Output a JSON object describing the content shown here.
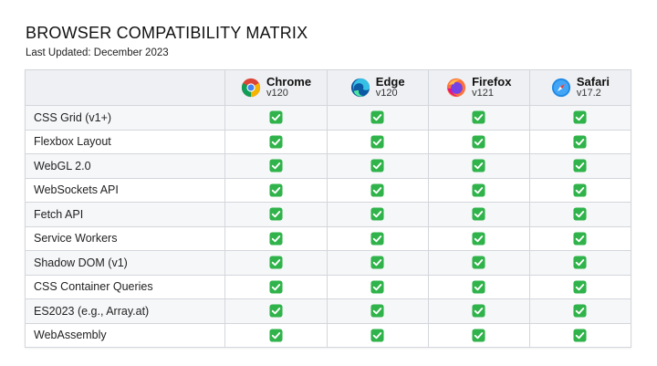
{
  "header": {
    "title": "BROWSER COMPATIBILITY MATRIX",
    "subtitle": "Last Updated: December 2023"
  },
  "browsers": [
    {
      "name": "Chrome",
      "version": "v120",
      "icon": "chrome-logo-icon"
    },
    {
      "name": "Edge",
      "version": "v120",
      "icon": "edge-logo-icon"
    },
    {
      "name": "Firefox",
      "version": "v121",
      "icon": "firefox-logo-icon"
    },
    {
      "name": "Safari",
      "version": "v17.2",
      "icon": "safari-logo-icon"
    }
  ],
  "features": [
    {
      "name": "CSS Grid (v1+)",
      "support": [
        true,
        true,
        true,
        true
      ]
    },
    {
      "name": "Flexbox Layout",
      "support": [
        true,
        true,
        true,
        true
      ]
    },
    {
      "name": "WebGL 2.0",
      "support": [
        true,
        true,
        true,
        true
      ]
    },
    {
      "name": "WebSockets API",
      "support": [
        true,
        true,
        true,
        true
      ]
    },
    {
      "name": "Fetch API",
      "support": [
        true,
        true,
        true,
        true
      ]
    },
    {
      "name": "Service Workers",
      "support": [
        true,
        true,
        true,
        true
      ]
    },
    {
      "name": "Shadow DOM (v1)",
      "support": [
        true,
        true,
        true,
        true
      ]
    },
    {
      "name": "CSS Container Queries",
      "support": [
        true,
        true,
        true,
        true
      ]
    },
    {
      "name": "ES2023 (e.g., Array.at)",
      "support": [
        true,
        true,
        true,
        true
      ]
    },
    {
      "name": "WebAssembly",
      "support": [
        true,
        true,
        true,
        true
      ]
    }
  ],
  "colors": {
    "check_green": "#2fb34a",
    "header_bg": "#eef0f3",
    "border": "#d3d6db"
  }
}
